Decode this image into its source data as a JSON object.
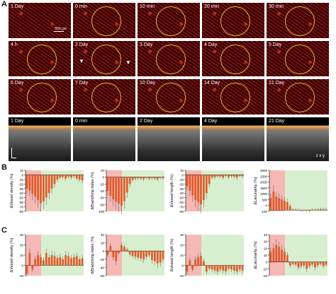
{
  "panels": {
    "a": "A",
    "b": "B",
    "c": "C"
  },
  "rows": {
    "row1": [
      "1 Day",
      "0 min",
      "10 min",
      "20 min",
      "30 min"
    ],
    "row2": [
      "4 h",
      "2 Day",
      "3 Day",
      "4 Day",
      "5 Day"
    ],
    "row3": [
      "6 Day",
      "7 Day",
      "10 Day",
      "14 Day",
      "21 Day"
    ],
    "oct": [
      "1 Day",
      "0 min",
      "2 Day",
      "4 Day",
      "21 Day"
    ]
  },
  "scale_label": "500 μm",
  "oct_axes": "z  x  y",
  "charts": {
    "B": [
      {
        "ylabel": "ΔVessel density (%)",
        "ticks": [
          "10",
          "0",
          "-10",
          "-20",
          "-30",
          "-40",
          "-50",
          "-60",
          "-70",
          "-80"
        ],
        "ymin": -80,
        "ymax": 10,
        "values": [
          -30,
          -35,
          -42,
          -48,
          -55,
          -62,
          -58,
          -50,
          -40,
          -30,
          -20,
          -10,
          -6,
          -5,
          -8,
          -4,
          -6,
          -3,
          -8,
          -10,
          -12
        ]
      },
      {
        "ylabel": "ΔBranching index (%)",
        "ticks": [
          "20",
          "0",
          "-20",
          "-40",
          "-60",
          "-80",
          "-100"
        ],
        "ymin": -100,
        "ymax": 20,
        "values": [
          -40,
          -55,
          -65,
          -72,
          -78,
          -84,
          -70,
          -45,
          -20,
          -8,
          -5,
          -3,
          -4,
          -6,
          -2,
          -5,
          -3,
          -4,
          -6,
          -2,
          -3
        ]
      },
      {
        "ylabel": "ΔVessel length (%)",
        "ticks": [
          "10",
          "0",
          "-10",
          "-20",
          "-30",
          "-40",
          "-50",
          "-60",
          "-70",
          "-80"
        ],
        "ymin": -80,
        "ymax": 10,
        "values": [
          -25,
          -35,
          -45,
          -55,
          -60,
          -65,
          -55,
          -40,
          -20,
          -6,
          -5,
          -3,
          -4,
          -6,
          -2,
          -5,
          -3,
          -4,
          -6,
          -2,
          -3
        ]
      },
      {
        "ylabel": "ΔLacunarity (%)",
        "ticks": [
          "3000",
          "2500",
          "2000",
          "1500",
          "1000",
          "500",
          "0",
          "-100"
        ],
        "ymin": -100,
        "ymax": 3000,
        "values": [
          900,
          1400,
          1000,
          900,
          800,
          700,
          600,
          300,
          40,
          20,
          10,
          -30,
          -20,
          -10,
          -40,
          20,
          30,
          40,
          60,
          50,
          40
        ]
      }
    ],
    "C": [
      {
        "ylabel": "ΔVessel density (%)",
        "ticks": [
          "30",
          "20",
          "10",
          "0",
          "-10"
        ],
        "ymin": -10,
        "ymax": 30,
        "values": [
          -8,
          12,
          -4,
          6,
          10,
          8,
          5,
          12,
          8,
          10,
          9,
          7,
          8,
          6,
          10,
          9,
          7,
          8,
          9,
          6,
          7
        ]
      },
      {
        "ylabel": "ΔBranching index (%)",
        "ticks": [
          "40",
          "20",
          "0",
          "-20",
          "-40",
          "-60"
        ],
        "ymin": -60,
        "ymax": 40,
        "values": [
          -10,
          12,
          -15,
          -25,
          -5,
          14,
          10,
          4,
          -8,
          -12,
          -14,
          -16,
          -18,
          -20,
          -14,
          -10,
          -22,
          -25,
          -30,
          -28,
          -20
        ]
      },
      {
        "ylabel": "ΔVessel length (%)",
        "ticks": [
          "30",
          "20",
          "10",
          "0",
          "-10"
        ],
        "ymin": -10,
        "ymax": 30,
        "values": [
          -6,
          5,
          -4,
          6,
          8,
          9,
          4,
          -6,
          -3,
          -4,
          -5,
          -6,
          -4,
          -5,
          -6,
          -3,
          -4,
          -5,
          -6,
          -4,
          -5
        ]
      },
      {
        "ylabel": "ΔLacunarity (%)",
        "ticks": [
          "40",
          "30",
          "20",
          "10",
          "0",
          "-10",
          "-20"
        ],
        "ymin": -20,
        "ymax": 40,
        "values": [
          15,
          20,
          25,
          22,
          18,
          15,
          10,
          -5,
          -3,
          -4,
          -8,
          -6,
          -5,
          -10,
          -6,
          -4,
          -8,
          -5,
          -3,
          -6,
          -4
        ]
      }
    ]
  },
  "chart_data": {
    "type": "bar",
    "colors": {
      "bar": "#e05a2a",
      "shade_red": "#f5b8b4",
      "shade_green": "#d8efcf"
    }
  }
}
